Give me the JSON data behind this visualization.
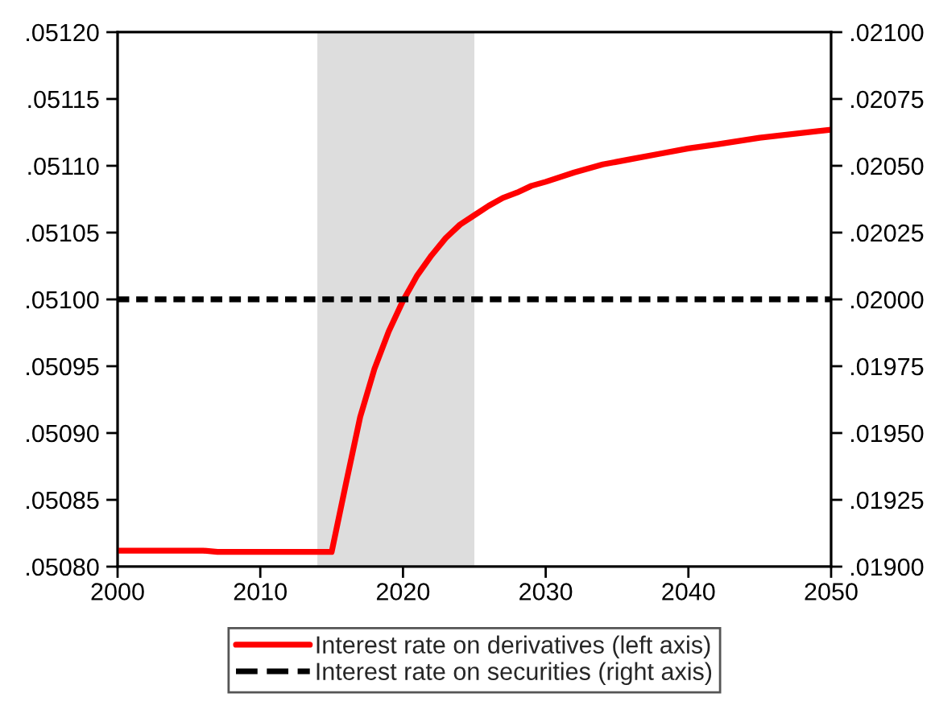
{
  "chart_data": {
    "type": "line",
    "xlim": [
      2000,
      2050
    ],
    "xticks": [
      2000,
      2010,
      2020,
      2030,
      2040,
      2050
    ],
    "ylim": [
      0.0508,
      0.0512
    ],
    "yticks": [
      {
        "value": 0.0508,
        "label": ".05080"
      },
      {
        "value": 0.05085,
        "label": ".05085"
      },
      {
        "value": 0.0509,
        "label": ".05090"
      },
      {
        "value": 0.05095,
        "label": ".05095"
      },
      {
        "value": 0.051,
        "label": ".05100"
      },
      {
        "value": 0.05105,
        "label": ".05105"
      },
      {
        "value": 0.0511,
        "label": ".05110"
      },
      {
        "value": 0.05115,
        "label": ".05115"
      },
      {
        "value": 0.0512,
        "label": ".05120"
      }
    ],
    "y2lim": [
      0.019,
      0.021
    ],
    "y2ticks": [
      {
        "value": 0.019,
        "label": ".01900"
      },
      {
        "value": 0.01925,
        "label": ".01925"
      },
      {
        "value": 0.0195,
        "label": ".01950"
      },
      {
        "value": 0.01975,
        "label": ".01975"
      },
      {
        "value": 0.02,
        "label": ".02000"
      },
      {
        "value": 0.02025,
        "label": ".02025"
      },
      {
        "value": 0.0205,
        "label": ".02050"
      },
      {
        "value": 0.02075,
        "label": ".02075"
      },
      {
        "value": 0.021,
        "label": ".02100"
      }
    ],
    "bands": [
      {
        "axis": "x",
        "from": 2014,
        "to": 2025,
        "color": "#dddddd"
      }
    ],
    "series": [
      {
        "name": "Interest rate on derivatives (left axis)",
        "color": "#ff0000",
        "line_style": "solid",
        "axis": "y",
        "x": [
          2000,
          2006,
          2007,
          2015,
          2016,
          2017,
          2018,
          2019,
          2020,
          2021,
          2022,
          2023,
          2024,
          2025,
          2026,
          2027,
          2028,
          2029,
          2030,
          2032,
          2034,
          2036,
          2038,
          2040,
          2042,
          2045,
          2050
        ],
        "values": [
          0.050812,
          0.050812,
          0.050811,
          0.050811,
          0.050862,
          0.050912,
          0.050948,
          0.050976,
          0.050999,
          0.051018,
          0.051033,
          0.051046,
          0.051056,
          0.051063,
          0.05107,
          0.051076,
          0.05108,
          0.051085,
          0.051088,
          0.051095,
          0.051101,
          0.051105,
          0.051109,
          0.051113,
          0.051116,
          0.051121,
          0.051127
        ]
      },
      {
        "name": "Interest rate on securities (right axis)",
        "color": "#000000",
        "line_style": "dashed",
        "axis": "y2",
        "x": [
          2000,
          2050
        ],
        "values": [
          0.02,
          0.02
        ]
      }
    ],
    "legend": "bottom"
  }
}
